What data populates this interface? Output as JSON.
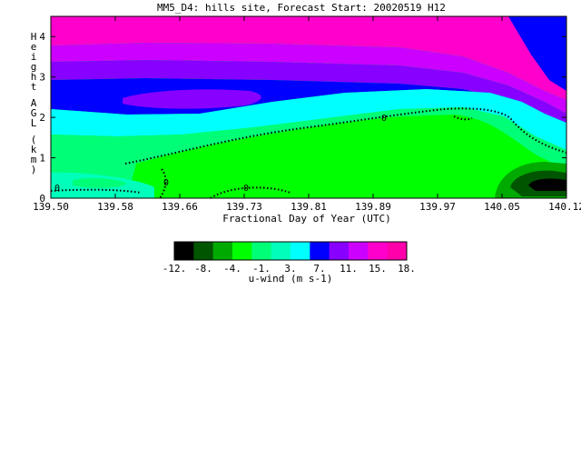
{
  "chart_data": {
    "type": "heatmap",
    "title": "MM5_D4: hills site,  Forecast Start: 20020519 H12",
    "xlabel": "Fractional Day of Year (UTC)",
    "ylabel": "Height AGL (km)",
    "x_ticks": [
      "139.50",
      "139.58",
      "139.66",
      "139.73",
      "139.81",
      "139.89",
      "139.97",
      "140.05",
      "140.12"
    ],
    "y_ticks": [
      "0",
      "1",
      "2",
      "3",
      "4"
    ],
    "xlim": [
      139.5,
      140.12
    ],
    "ylim": [
      0,
      4.5
    ],
    "contour_label": "0",
    "colorbar": {
      "label": "u-wind (m s-1)",
      "tick_labels": [
        "-12.",
        "-8.",
        "-4.",
        "-1.",
        "3.",
        "7.",
        "11.",
        "15.",
        "18."
      ],
      "colors": [
        "#000000",
        "#005500",
        "#00aa00",
        "#00ff00",
        "#00ff77",
        "#00ffbb",
        "#00ffff",
        "#0000ff",
        "#8800ff",
        "#cc00ff",
        "#ff00cc",
        "#ff00aa"
      ]
    },
    "bands_top_to_bottom": [
      {
        "range": "15. to 18.",
        "color": "#ff00cc"
      },
      {
        "range": "11. to 15.",
        "color": "#cc00ff"
      },
      {
        "range": "7. to 11.",
        "color": "#8800ff"
      },
      {
        "range": "3. to 7.",
        "color": "#0000ff"
      },
      {
        "range": "-1. to 3.",
        "color": "#00ffff"
      },
      {
        "range": "-4. to -1.",
        "color": "#00ff77"
      },
      {
        "range": "-8. to -4.",
        "color": "#00ff00"
      },
      {
        "range": "-12. to -8.",
        "color": "#00aa00"
      }
    ]
  }
}
